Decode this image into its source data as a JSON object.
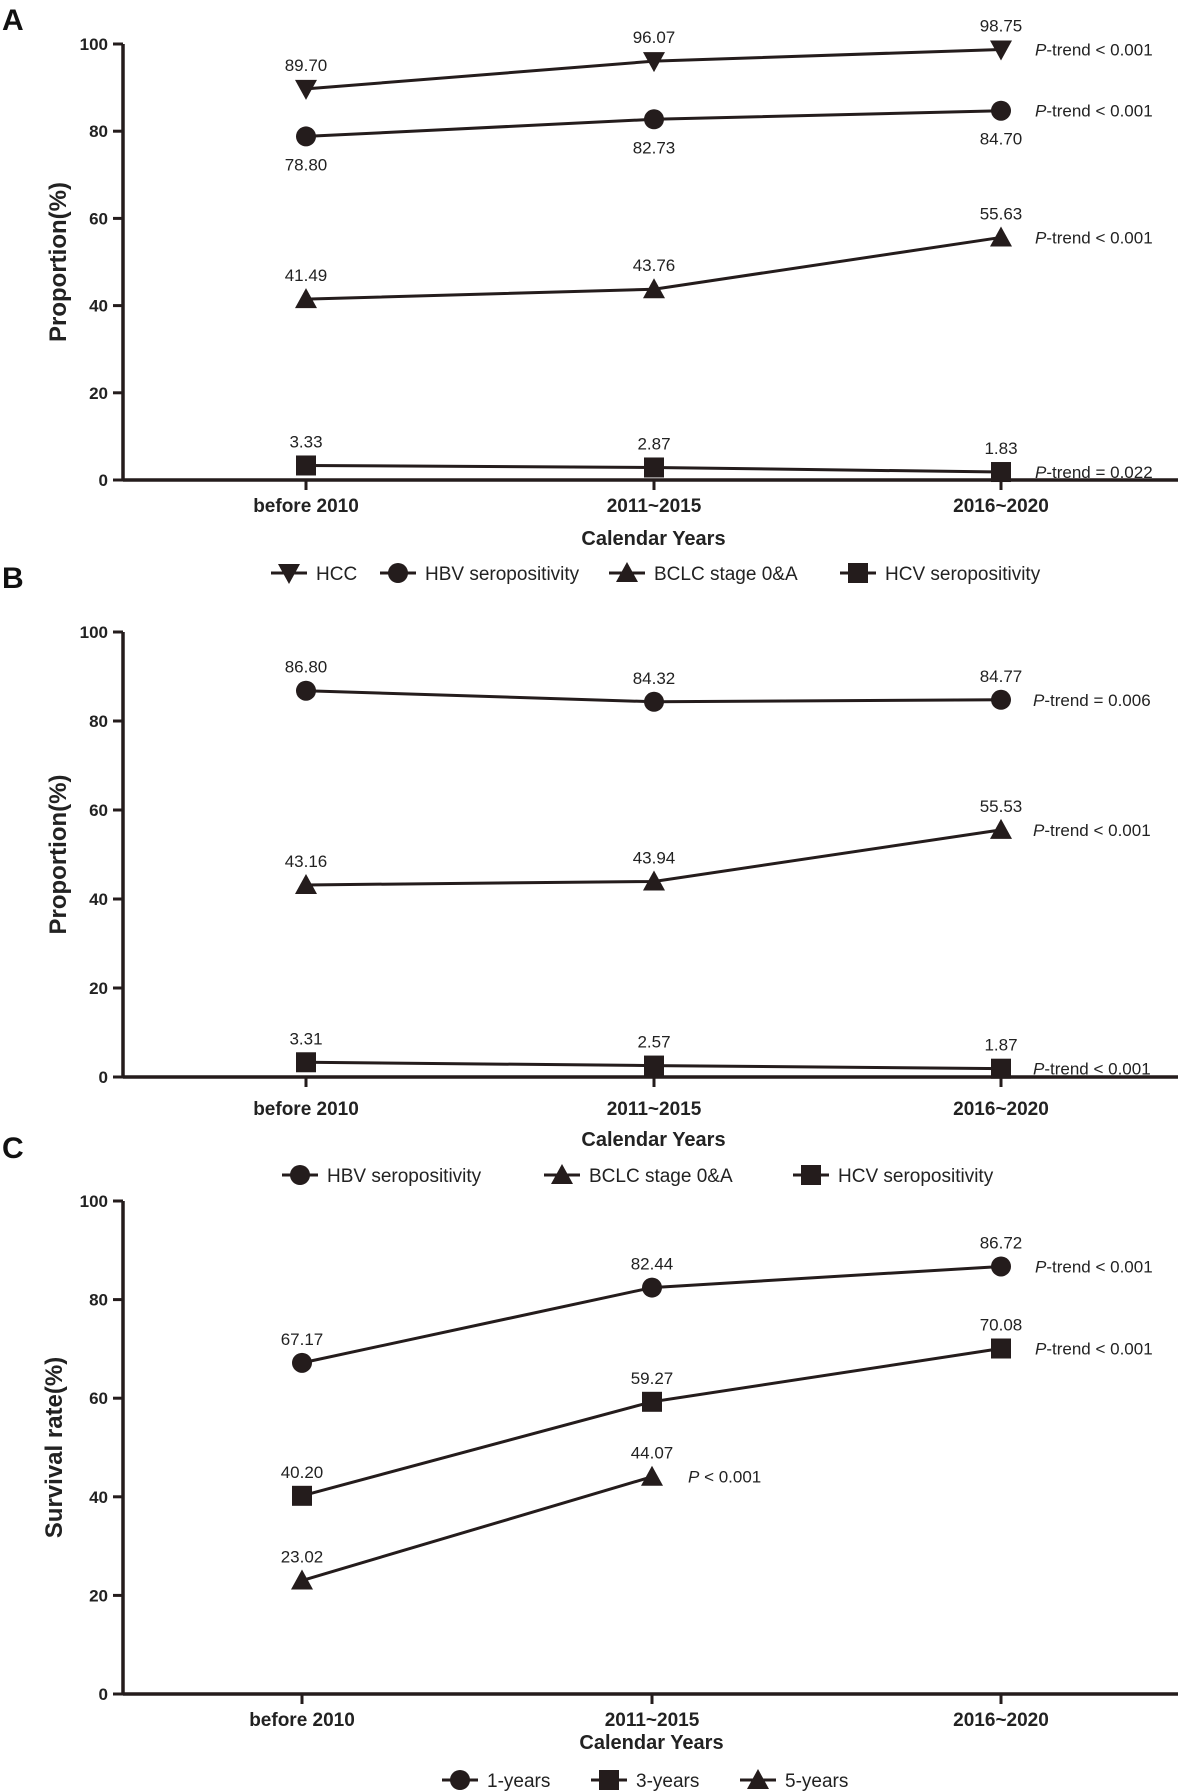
{
  "chart_data": [
    {
      "type": "line",
      "panel": "A",
      "title": "",
      "xlabel": "Calendar Years",
      "ylabel": "Proportion(%)",
      "categories": [
        "before 2010",
        "2011~2015",
        "2016~2020"
      ],
      "ylim": [
        0,
        100
      ],
      "yticks": [
        0,
        20,
        40,
        60,
        80,
        100
      ],
      "series": [
        {
          "name": "HCC",
          "marker": "triangle-down",
          "values": [
            89.7,
            96.07,
            98.75
          ],
          "value_labels": [
            "89.70",
            "96.07",
            "98.75"
          ],
          "label_pos": [
            "above",
            "above",
            "above"
          ],
          "trend_prefix": "P",
          "trend_text": "-trend < 0.001"
        },
        {
          "name": "HBV seropositivity",
          "marker": "circle",
          "values": [
            78.8,
            82.73,
            84.7
          ],
          "value_labels": [
            "78.80",
            "82.73",
            "84.70"
          ],
          "label_pos": [
            "below",
            "below",
            "below"
          ],
          "trend_prefix": "P",
          "trend_text": "-trend < 0.001"
        },
        {
          "name": "BCLC stage 0&A",
          "marker": "triangle-up",
          "values": [
            41.49,
            43.76,
            55.63
          ],
          "value_labels": [
            "41.49",
            "43.76",
            "55.63"
          ],
          "label_pos": [
            "above",
            "above",
            "above"
          ],
          "trend_prefix": "P",
          "trend_text": "-trend < 0.001"
        },
        {
          "name": "HCV seropositivity",
          "marker": "square",
          "values": [
            3.33,
            2.87,
            1.83
          ],
          "value_labels": [
            "3.33",
            "2.87",
            "1.83"
          ],
          "label_pos": [
            "above",
            "above",
            "above"
          ],
          "trend_prefix": "P",
          "trend_text": "-trend = 0.022"
        }
      ],
      "legend": [
        "HCC",
        "HBV seropositivity",
        "BCLC stage 0&A",
        "HCV seropositivity"
      ]
    },
    {
      "type": "line",
      "panel": "B",
      "title": "",
      "xlabel": "Calendar Years",
      "ylabel": "Proportion(%)",
      "categories": [
        "before 2010",
        "2011~2015",
        "2016~2020"
      ],
      "ylim": [
        0,
        100
      ],
      "yticks": [
        0,
        20,
        40,
        60,
        80,
        100
      ],
      "series": [
        {
          "name": "HBV seropositivity",
          "marker": "circle",
          "values": [
            86.8,
            84.32,
            84.77
          ],
          "value_labels": [
            "86.80",
            "84.32",
            "84.77"
          ],
          "label_pos": [
            "above",
            "above",
            "above"
          ],
          "trend_prefix": "P",
          "trend_text": "-trend = 0.006"
        },
        {
          "name": "BCLC stage 0&A",
          "marker": "triangle-up",
          "values": [
            43.16,
            43.94,
            55.53
          ],
          "value_labels": [
            "43.16",
            "43.94",
            "55.53"
          ],
          "label_pos": [
            "above",
            "above",
            "above"
          ],
          "trend_prefix": "P",
          "trend_text": "-trend < 0.001"
        },
        {
          "name": "HCV seropositivity",
          "marker": "square",
          "values": [
            3.31,
            2.57,
            1.87
          ],
          "value_labels": [
            "3.31",
            "2.57",
            "1.87"
          ],
          "label_pos": [
            "above",
            "above",
            "above"
          ],
          "trend_prefix": "P",
          "trend_text": "-trend < 0.001"
        }
      ],
      "legend": [
        "HBV seropositivity",
        "BCLC stage 0&A",
        "HCV seropositivity"
      ]
    },
    {
      "type": "line",
      "panel": "C",
      "title": "",
      "xlabel": "Calendar Years",
      "ylabel": "Survival rate(%)",
      "categories": [
        "before 2010",
        "2011~2015",
        "2016~2020"
      ],
      "ylim": [
        0,
        100
      ],
      "yticks": [
        0,
        20,
        40,
        60,
        80,
        100
      ],
      "series": [
        {
          "name": "1-years",
          "marker": "circle",
          "values": [
            67.17,
            82.44,
            86.72
          ],
          "value_labels": [
            "67.17",
            "82.44",
            "86.72"
          ],
          "label_pos": [
            "above",
            "above",
            "above"
          ],
          "trend_prefix": "P",
          "trend_text": "-trend < 0.001"
        },
        {
          "name": "3-years",
          "marker": "square",
          "values": [
            40.2,
            59.27,
            70.08
          ],
          "value_labels": [
            "40.20",
            "59.27",
            "70.08"
          ],
          "label_pos": [
            "above",
            "above",
            "above"
          ],
          "trend_prefix": "P",
          "trend_text": "-trend < 0.001"
        },
        {
          "name": "5-years",
          "marker": "triangle-up",
          "values": [
            23.02,
            44.07,
            null
          ],
          "value_labels": [
            "23.02",
            "44.07",
            ""
          ],
          "label_pos": [
            "above",
            "above",
            "above"
          ],
          "trend_prefix": "P",
          "trend_text": " < 0.001"
        }
      ],
      "legend": [
        "1-years",
        "3-years",
        "5-years"
      ]
    }
  ]
}
